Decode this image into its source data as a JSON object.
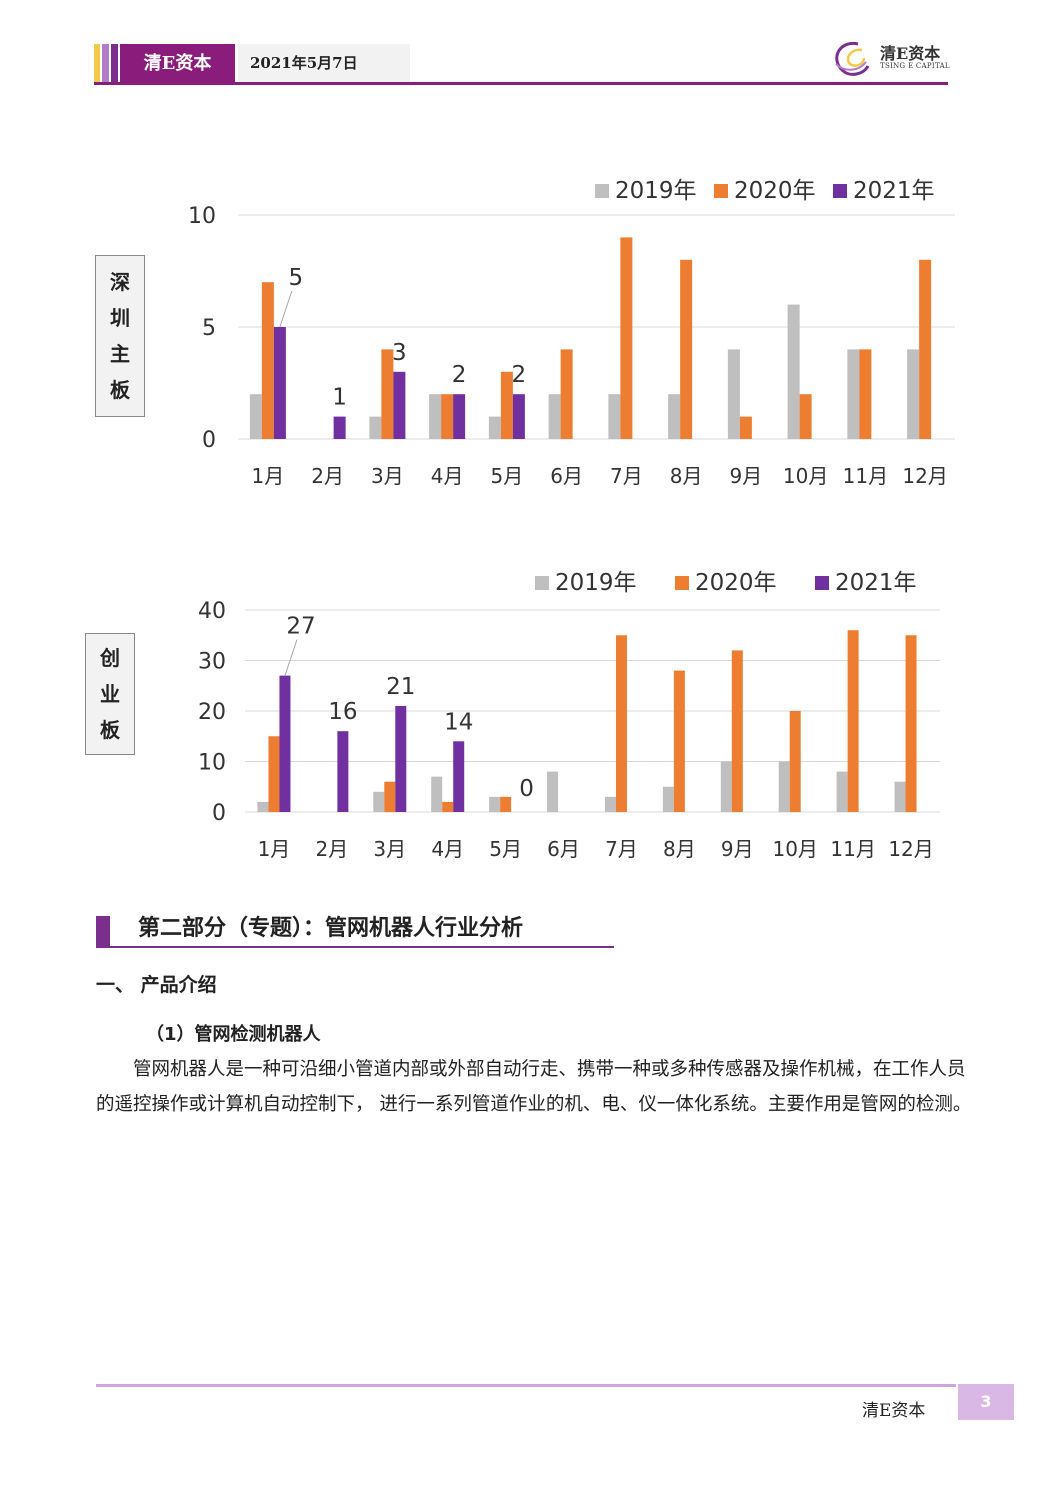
{
  "header": {
    "brand": "清E资本",
    "date": "2021年5月7日",
    "logo_text": "清E资本",
    "logo_sub": "TSING E CAPITAL"
  },
  "colors": {
    "accent": "#8a1c7c",
    "s2019": "#bfbfbf",
    "s2020": "#ed7d31",
    "s2021": "#7030a0"
  },
  "side_labels": {
    "chart1": [
      "深",
      "圳",
      "主",
      "板"
    ],
    "chart2": [
      "创",
      "业",
      "板"
    ]
  },
  "chart_data": [
    {
      "type": "bar",
      "label": "深圳主板",
      "categories": [
        "1月",
        "2月",
        "3月",
        "4月",
        "5月",
        "6月",
        "7月",
        "8月",
        "9月",
        "10月",
        "11月",
        "12月"
      ],
      "series": [
        {
          "name": "2019年",
          "values": [
            2,
            0,
            1,
            2,
            1,
            2,
            2,
            2,
            4,
            6,
            4,
            4
          ]
        },
        {
          "name": "2020年",
          "values": [
            7,
            0,
            4,
            2,
            3,
            4,
            9,
            8,
            1,
            2,
            4,
            8
          ]
        },
        {
          "name": "2021年",
          "values": [
            5,
            1,
            3,
            2,
            2,
            null,
            null,
            null,
            null,
            null,
            null,
            null
          ]
        }
      ],
      "data_labels": [
        "5",
        "1",
        "3",
        "2",
        "2"
      ],
      "yticks": [
        "0",
        "5",
        "10"
      ],
      "ylim": [
        0,
        10
      ],
      "legend": "top-right",
      "grid": true
    },
    {
      "type": "bar",
      "label": "创业板",
      "categories": [
        "1月",
        "2月",
        "3月",
        "4月",
        "5月",
        "6月",
        "7月",
        "8月",
        "9月",
        "10月",
        "11月",
        "12月"
      ],
      "series": [
        {
          "name": "2019年",
          "values": [
            2,
            0,
            4,
            7,
            3,
            8,
            3,
            5,
            10,
            10,
            8,
            6
          ]
        },
        {
          "name": "2020年",
          "values": [
            15,
            0,
            6,
            2,
            3,
            0,
            35,
            28,
            32,
            20,
            36,
            35
          ]
        },
        {
          "name": "2021年",
          "values": [
            27,
            16,
            21,
            14,
            0,
            null,
            null,
            null,
            null,
            null,
            null,
            null
          ]
        }
      ],
      "data_labels": [
        "27",
        "16",
        "21",
        "14",
        "0"
      ],
      "yticks": [
        "0",
        "10",
        "20",
        "30",
        "40"
      ],
      "ylim": [
        0,
        40
      ],
      "legend": "top-right",
      "grid": true
    }
  ],
  "section": {
    "title": "第二部分（专题）：管网机器人行业分析",
    "h1": "一、 产品介绍",
    "h2": "（1）管网检测机器人",
    "paragraph": "管网机器人是一种可沿细小管道内部或外部自动行走、携带一种或多种传感器及操作机械，在工作人员的遥控操作或计算机自动控制下， 进行一系列管道作业的机、电、仪一体化系统。主要作用是管网的检测。"
  },
  "footer": {
    "brand": "清E资本",
    "page": "3"
  }
}
